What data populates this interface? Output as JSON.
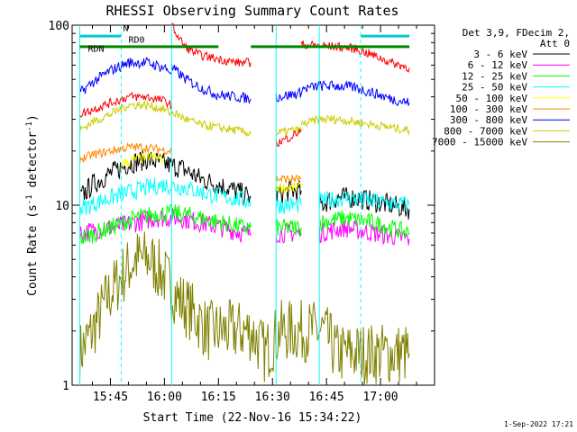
{
  "chart_data": {
    "type": "line",
    "title": "RHESSI Observing Summary Count Rates",
    "xlabel": "Start Time (22-Nov-16 15:34:22)",
    "ylabel": "Count Rate (s⁻¹ detector⁻¹)",
    "ylabel_parts": [
      "Count Rate (s",
      "-1",
      " detector",
      "-1",
      ")"
    ],
    "yscale": "log",
    "ylim": [
      1,
      100
    ],
    "y_tick_labels": [
      "1",
      "10",
      "100"
    ],
    "x_range_minutes": [
      "15:34:22",
      "17:15"
    ],
    "x_ticks": [
      {
        "label": "15:45",
        "minute": 45
      },
      {
        "label": "16:00",
        "minute": 60
      },
      {
        "label": "16:15",
        "minute": 75
      },
      {
        "label": "16:30",
        "minute": 90
      },
      {
        "label": "16:45",
        "minute": 105
      },
      {
        "label": "17:00",
        "minute": 120
      }
    ],
    "legend_header": [
      "Det 3,9, FDecim 2,",
      "Att 0"
    ],
    "legend_position": "right",
    "series": [
      {
        "name": "3 - 6 keV",
        "color": "#000000",
        "segments": [
          {
            "x": [
              36.5,
              40,
              45,
              50,
              55,
              60,
              65,
              70,
              75,
              80,
              84
            ],
            "y": [
              11,
              13,
              15,
              17,
              18,
              17,
              16,
              14,
              13,
              12,
              11
            ]
          },
          {
            "x": [
              91,
              95,
              98
            ],
            "y": [
              11.5,
              12,
              12
            ]
          },
          {
            "x": [
              103,
              108,
              113,
              118,
              123,
              128
            ],
            "y": [
              10,
              11,
              11,
              10.5,
              10,
              9.5
            ]
          }
        ]
      },
      {
        "name": "6 - 12 keV",
        "color": "#ff00ff",
        "segments": [
          {
            "x": [
              36.5,
              45,
              52,
              58,
              64,
              70,
              76,
              82,
              84
            ],
            "y": [
              7,
              7.5,
              8,
              8.5,
              8.5,
              8,
              7.5,
              7,
              7
            ]
          },
          {
            "x": [
              91,
              98
            ],
            "y": [
              7,
              7
            ]
          },
          {
            "x": [
              103,
              110,
              118,
              128
            ],
            "y": [
              7,
              7.5,
              7,
              6.5
            ]
          }
        ]
      },
      {
        "name": "12 - 25 keV",
        "color": "#00ff00",
        "segments": [
          {
            "x": [
              36.5,
              45,
              52,
              58,
              64,
              70,
              76,
              82,
              84
            ],
            "y": [
              6.5,
              7.5,
              8.5,
              9,
              9,
              8.5,
              8,
              7.5,
              7.5
            ]
          },
          {
            "x": [
              91,
              98
            ],
            "y": [
              7.5,
              7.5
            ]
          },
          {
            "x": [
              103,
              110,
              118,
              128
            ],
            "y": [
              8,
              8.5,
              8,
              7
            ]
          }
        ]
      },
      {
        "name": "25 - 50 keV",
        "color": "#00ffff",
        "segments": [
          {
            "x": [
              36.5,
              42,
              48,
              55,
              60,
              66,
              72,
              78,
              84
            ],
            "y": [
              9.5,
              10.5,
              11.5,
              12.5,
              13,
              12.5,
              11.5,
              11,
              10.5
            ]
          },
          {
            "x": [
              91,
              98
            ],
            "y": [
              10,
              10
            ]
          },
          {
            "x": [
              103,
              110,
              118,
              128
            ],
            "y": [
              10.5,
              11,
              10.5,
              10
            ]
          }
        ]
      },
      {
        "name": "50 - 100 keV",
        "color": "#ffff00",
        "segments": [
          {
            "x": [
              48,
              52,
              56,
              60
            ],
            "y": [
              17,
              18,
              18.5,
              18
            ]
          },
          {
            "x": [
              91,
              98
            ],
            "y": [
              12.5,
              12.5
            ]
          }
        ]
      },
      {
        "name": "100 - 300 keV",
        "color": "#ff8800",
        "segments": [
          {
            "x": [
              36.5,
              40,
              45,
              50,
              54,
              58,
              62
            ],
            "y": [
              18,
              19,
              20,
              21,
              21,
              20.5,
              20
            ]
          },
          {
            "x": [
              91,
              98
            ],
            "y": [
              14,
              14
            ]
          }
        ]
      },
      {
        "name": "300 - 800 keV",
        "color": "#0000ff",
        "segments": [
          {
            "x": [
              36.5,
              40,
              45,
              50,
              55,
              60,
              62
            ],
            "y": [
              42,
              48,
              56,
              62,
              62,
              58,
              55
            ]
          },
          {
            "x": [
              62,
              66,
              70,
              75,
              80,
              84
            ],
            "y": [
              58,
              50,
              45,
              41,
              40,
              39
            ]
          },
          {
            "x": [
              91,
              95,
              98
            ],
            "y": [
              40,
              41,
              42
            ]
          },
          {
            "x": [
              98,
              103,
              108,
              113,
              118,
              123,
              128
            ],
            "y": [
              44,
              46,
              46,
              45,
              42,
              39,
              37
            ]
          }
        ]
      },
      {
        "name": "800 - 7000 keV",
        "color": "#cccc00",
        "segments": [
          {
            "x": [
              36.5,
              40,
              45,
              50,
              55,
              60,
              62
            ],
            "y": [
              26,
              29,
              32,
              36,
              36,
              34,
              32
            ]
          },
          {
            "x": [
              62,
              66,
              70,
              75,
              80,
              84
            ],
            "y": [
              33,
              30,
              28,
              27,
              26,
              25
            ]
          },
          {
            "x": [
              91,
              95,
              98
            ],
            "y": [
              25,
              26,
              26
            ]
          },
          {
            "x": [
              98,
              103,
              108,
              113,
              118,
              123,
              128
            ],
            "y": [
              28,
              30,
              30,
              29,
              28,
              27,
              26
            ]
          }
        ]
      },
      {
        "name": "7000 - 15000 keV",
        "color": "#808000",
        "segments": [
          {
            "x": [
              36.5,
              40,
              44,
              48,
              52,
              56,
              60,
              64,
              68,
              72,
              76,
              80,
              84,
              88,
              92,
              96,
              100,
              104,
              108,
              112,
              116,
              120,
              124,
              128
            ],
            "y": [
              1.5,
              2,
              3,
              4,
              5,
              5,
              4,
              3,
              2.5,
              2,
              2,
              2,
              2,
              1.5,
              2,
              2,
              2,
              2,
              1.5,
              1.5,
              1.5,
              1.5,
              1.5,
              1.5
            ]
          }
        ]
      }
    ],
    "extra_traces": [
      {
        "note": "red",
        "color": "#ff0000",
        "segments": [
          {
            "x": [
              36.5,
              40,
              45,
              50,
              55,
              60,
              62
            ],
            "y": [
              32,
              34,
              37,
              40,
              40,
              38,
              36
            ]
          },
          {
            "x": [
              62,
              64,
              66,
              70,
              75,
              80,
              84
            ],
            "y": [
              100,
              85,
              75,
              68,
              65,
              62,
              62
            ]
          },
          {
            "x": [
              91,
              95,
              98
            ],
            "y": [
              22,
              24,
              26
            ]
          },
          {
            "x": [
              98,
              103,
              108,
              113,
              118,
              123,
              128
            ],
            "y": [
              78,
              77,
              76,
              74,
              68,
              62,
              58
            ]
          }
        ]
      }
    ],
    "decim_level_minutes": [
      36.5,
      75
    ],
    "decim_level_minutes_b": [
      84,
      128
    ],
    "decim_y": 76,
    "state_labels": [
      {
        "text": "N",
        "minute": 48.5
      },
      {
        "text": "RD0",
        "minute": 50
      },
      {
        "text": "RDN",
        "minute": 41
      }
    ],
    "night_bars": [
      [
        36.5,
        48
      ],
      [
        114.5,
        128
      ]
    ],
    "night_y": 87,
    "dashed_lines_minutes": [
      48,
      114.5
    ],
    "solid_lines_minutes": [
      36.5,
      62,
      91,
      103
    ],
    "footer": "1-Sep-2022 17:21"
  }
}
